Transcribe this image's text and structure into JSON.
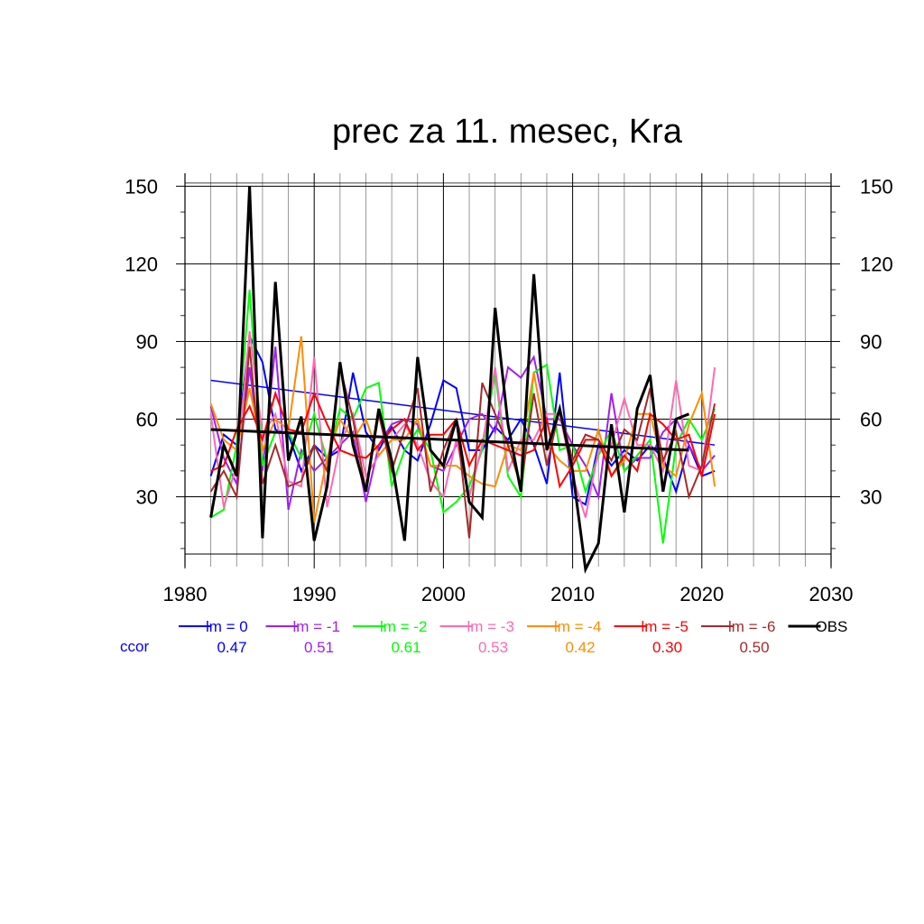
{
  "chart_data": {
    "type": "line",
    "title": "prec za 11. mesec, Kra",
    "xlabel": "",
    "ylabel": "",
    "xlim": [
      1980,
      2030
    ],
    "ylim": [
      3,
      155
    ],
    "xticks": [
      "1980",
      "1990",
      "2000",
      "2010",
      "2020",
      "2030"
    ],
    "xtick_values": [
      1980,
      1990,
      2000,
      2010,
      2020,
      2030
    ],
    "yticks": [
      "30",
      "60",
      "90",
      "120",
      "150"
    ],
    "ytick_values": [
      30,
      60,
      90,
      120,
      150
    ],
    "grid": true,
    "legend_position": "bottom",
    "ccor_label": "ccor",
    "years": [
      1982,
      1983,
      1984,
      1985,
      1986,
      1987,
      1988,
      1989,
      1990,
      1991,
      1992,
      1993,
      1994,
      1995,
      1996,
      1997,
      1998,
      1999,
      2000,
      2001,
      2002,
      2003,
      2004,
      2005,
      2006,
      2007,
      2008,
      2009,
      2010,
      2011,
      2012,
      2013,
      2014,
      2015,
      2016,
      2017,
      2018,
      2019,
      2020,
      2021
    ],
    "series": [
      {
        "name": "lm = 0",
        "color": "#0000ff",
        "ccor": "0.47",
        "values": [
          38,
          54,
          50,
          92,
          82,
          56,
          54,
          40,
          50,
          45,
          48,
          78,
          55,
          48,
          57,
          48,
          44,
          58,
          75,
          72,
          48,
          48,
          57,
          52,
          60,
          50,
          35,
          78,
          30,
          27,
          50,
          42,
          48,
          44,
          50,
          45,
          32,
          50,
          38,
          40
        ],
        "trend": [
          75,
          50
        ]
      },
      {
        "name": "lm = -1",
        "color": "#a020f0",
        "ccor": "0.51",
        "values": [
          65,
          45,
          35,
          80,
          40,
          88,
          25,
          48,
          40,
          45,
          50,
          55,
          28,
          50,
          58,
          60,
          58,
          42,
          40,
          50,
          60,
          62,
          55,
          80,
          76,
          84,
          60,
          60,
          50,
          42,
          30,
          70,
          40,
          45,
          45,
          55,
          60,
          50,
          40,
          46
        ],
        "trend": null
      },
      {
        "name": "lm = -2",
        "color": "#00ff00",
        "ccor": "0.61",
        "values": [
          22,
          25,
          50,
          110,
          42,
          55,
          55,
          45,
          62,
          44,
          64,
          60,
          72,
          74,
          34,
          48,
          56,
          48,
          24,
          28,
          34,
          48,
          78,
          38,
          30,
          78,
          81,
          48,
          50,
          32,
          46,
          56,
          40,
          46,
          52,
          12,
          50,
          60,
          52,
          64
        ],
        "trend": null
      },
      {
        "name": "lm = -3",
        "color": "#ff69b4",
        "ccor": "0.53",
        "values": [
          62,
          26,
          42,
          94,
          54,
          62,
          36,
          34,
          84,
          26,
          50,
          62,
          38,
          46,
          52,
          58,
          50,
          36,
          30,
          52,
          30,
          50,
          80,
          40,
          52,
          52,
          62,
          62,
          38,
          22,
          48,
          50,
          68,
          50,
          50,
          40,
          75,
          42,
          40,
          80
        ],
        "trend": null
      },
      {
        "name": "lm = -4",
        "color": "#ff8c00",
        "ccor": "0.42",
        "values": [
          66,
          52,
          48,
          72,
          48,
          60,
          56,
          92,
          20,
          45,
          60,
          52,
          60,
          46,
          52,
          52,
          60,
          42,
          42,
          42,
          38,
          35,
          34,
          50,
          48,
          78,
          50,
          44,
          40,
          40,
          56,
          38,
          44,
          62,
          62,
          42,
          38,
          58,
          70,
          34
        ],
        "trend": null
      },
      {
        "name": "lm = -5",
        "color": "#ff0000",
        "ccor": "0.30",
        "values": [
          40,
          42,
          56,
          65,
          52,
          70,
          56,
          55,
          70,
          58,
          48,
          46,
          45,
          50,
          56,
          60,
          48,
          54,
          54,
          60,
          42,
          52,
          50,
          48,
          46,
          48,
          60,
          34,
          42,
          52,
          52,
          38,
          46,
          40,
          62,
          58,
          52,
          54,
          38,
          62
        ],
        "trend": null
      },
      {
        "name": "lm = -6",
        "color": "#a52a2a",
        "ccor": "0.50",
        "values": [
          32,
          40,
          30,
          88,
          35,
          50,
          34,
          36,
          50,
          40,
          80,
          60,
          32,
          62,
          40,
          56,
          72,
          32,
          48,
          60,
          14,
          74,
          62,
          50,
          34,
          70,
          42,
          64,
          44,
          54,
          52,
          44,
          56,
          52,
          72,
          44,
          55,
          30,
          42,
          66
        ],
        "trend": null
      },
      {
        "name": "OBS",
        "color": "#000000",
        "ccor": "",
        "values": [
          22,
          50,
          38,
          150,
          14,
          113,
          44,
          61,
          13,
          34,
          82,
          50,
          32,
          64,
          44,
          13,
          84,
          48,
          42,
          60,
          28,
          22,
          103,
          58,
          32,
          116,
          48,
          64,
          40,
          2,
          12,
          58,
          24,
          64,
          77,
          32,
          60,
          62,
          null,
          null
        ],
        "trend": [
          56,
          48
        ]
      }
    ]
  }
}
